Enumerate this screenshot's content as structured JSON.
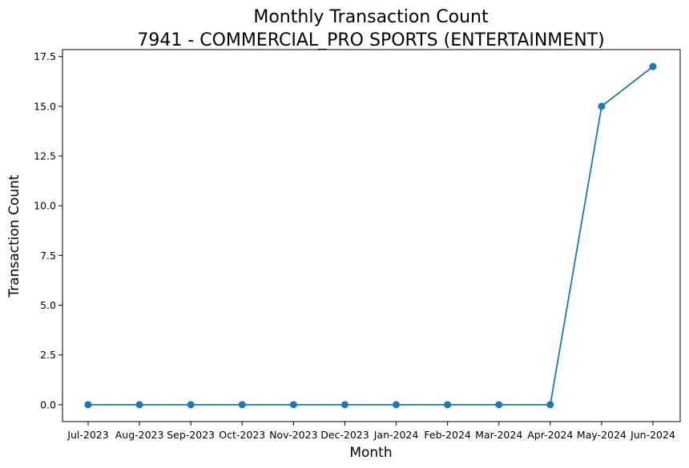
{
  "chart_data": {
    "type": "line",
    "title": "Monthly Transaction Count",
    "subtitle": "7941 - COMMERCIAL_PRO SPORTS (ENTERTAINMENT)",
    "xlabel": "Month",
    "ylabel": "Transaction Count",
    "categories": [
      "Jul-2023",
      "Aug-2023",
      "Sep-2023",
      "Oct-2023",
      "Nov-2023",
      "Dec-2023",
      "Jan-2024",
      "Feb-2024",
      "Mar-2024",
      "Apr-2024",
      "May-2024",
      "Jun-2024"
    ],
    "series": [
      {
        "values": [
          0,
          0,
          0,
          0,
          0,
          0,
          0,
          0,
          0,
          0,
          15,
          17
        ]
      }
    ],
    "ylim": [
      -0.85,
      17.85
    ],
    "yticks": [
      "0.0",
      "2.5",
      "5.0",
      "7.5",
      "10.0",
      "12.5",
      "15.0",
      "17.5"
    ],
    "grid": false,
    "legend": "none",
    "colors": {
      "series": "#1f77b4"
    }
  }
}
